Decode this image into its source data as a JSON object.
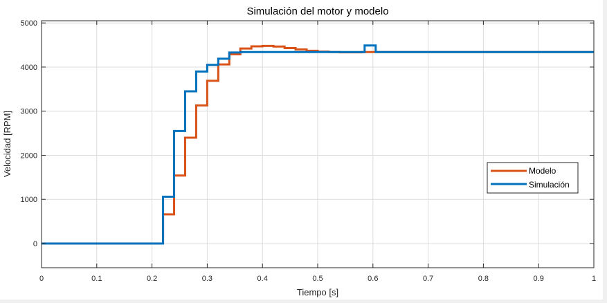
{
  "chart_data": {
    "type": "line",
    "title": "Simulación del motor y modelo",
    "xlabel": "Tiempo [s]",
    "ylabel": "Velocidad [RPM]",
    "xlim": [
      0,
      1
    ],
    "ylim": [
      -550,
      5050
    ],
    "xticks": [
      0,
      0.1,
      0.2,
      0.3,
      0.4,
      0.5,
      0.6,
      0.7,
      0.8,
      0.9,
      1
    ],
    "xtick_labels": [
      "0",
      "0.1",
      "0.2",
      "0.3",
      "0.4",
      "0.5",
      "0.6",
      "0.7",
      "0.8",
      "0.9",
      "1"
    ],
    "yticks": [
      0,
      1000,
      2000,
      3000,
      4000,
      5000
    ],
    "ytick_labels": [
      "0",
      "1000",
      "2000",
      "3000",
      "4000",
      "5000"
    ],
    "grid": true,
    "legend_position": "lower-right",
    "series": [
      {
        "name": "Modelo",
        "color": "#D95319",
        "style": "step",
        "x": [
          0,
          0.22,
          0.24,
          0.26,
          0.28,
          0.3,
          0.32,
          0.34,
          0.36,
          0.38,
          0.4,
          0.42,
          0.44,
          0.46,
          0.48,
          0.5,
          0.52,
          0.54,
          0.56,
          0.58,
          0.6,
          1.0
        ],
        "y": [
          0,
          660,
          1540,
          2400,
          3130,
          3690,
          4060,
          4290,
          4420,
          4470,
          4480,
          4465,
          4430,
          4400,
          4370,
          4350,
          4340,
          4335,
          4335,
          4340,
          4340,
          4340
        ]
      },
      {
        "name": "Simulación",
        "color": "#0072BD",
        "style": "step",
        "x": [
          0,
          0.22,
          0.24,
          0.26,
          0.28,
          0.3,
          0.32,
          0.34,
          0.36,
          0.38,
          0.4,
          0.42,
          0.44,
          0.46,
          0.48,
          0.5,
          0.52,
          0.54,
          0.56,
          0.58,
          0.585,
          0.605,
          0.62,
          1.0
        ],
        "y": [
          0,
          1060,
          2550,
          3450,
          3900,
          4050,
          4190,
          4330,
          4340,
          4340,
          4340,
          4340,
          4340,
          4340,
          4340,
          4340,
          4340,
          4340,
          4340,
          4340,
          4490,
          4340,
          4340,
          4340
        ]
      }
    ]
  }
}
